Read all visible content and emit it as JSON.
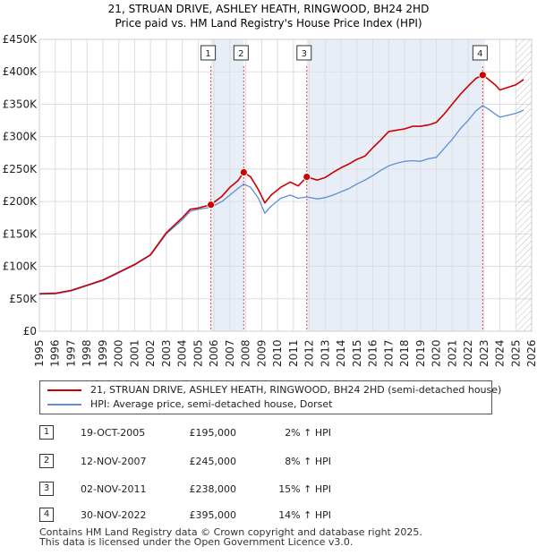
{
  "chart_data": {
    "type": "line",
    "title": "21, STRUAN DRIVE, ASHLEY HEATH, RINGWOOD, BH24 2HD",
    "subtitle": "Price paid vs. HM Land Registry's House Price Index (HPI)",
    "xlim": [
      1995,
      2026
    ],
    "ylim": [
      0,
      450000
    ],
    "x_ticks": [
      "1995",
      "1996",
      "1997",
      "1998",
      "1999",
      "2000",
      "2001",
      "2002",
      "2003",
      "2004",
      "2005",
      "2006",
      "2007",
      "2008",
      "2009",
      "2010",
      "2011",
      "2012",
      "2013",
      "2014",
      "2015",
      "2016",
      "2017",
      "2018",
      "2019",
      "2020",
      "2021",
      "2022",
      "2023",
      "2024",
      "2025",
      "2026"
    ],
    "y_ticks": [
      {
        "value": 0,
        "label": "£0"
      },
      {
        "value": 50000,
        "label": "£50K"
      },
      {
        "value": 100000,
        "label": "£100K"
      },
      {
        "value": 150000,
        "label": "£150K"
      },
      {
        "value": 200000,
        "label": "£200K"
      },
      {
        "value": 250000,
        "label": "£250K"
      },
      {
        "value": 300000,
        "label": "£300K"
      },
      {
        "value": 350000,
        "label": "£350K"
      },
      {
        "value": 400000,
        "label": "£400K"
      },
      {
        "value": 450000,
        "label": "£450K"
      }
    ],
    "grid": true,
    "shaded_regions": [
      [
        2005.8,
        2007.87
      ],
      [
        2011.84,
        2022.92
      ]
    ],
    "forecast_start": 2025.0,
    "series": [
      {
        "name": "21, STRUAN DRIVE, ASHLEY HEATH, RINGWOOD, BH24 2HD (semi-detached house)",
        "color": "#cc0000",
        "points": [
          [
            1995.0,
            58000
          ],
          [
            1996.0,
            58500
          ],
          [
            1997.0,
            63000
          ],
          [
            1998.0,
            71000
          ],
          [
            1999.0,
            79000
          ],
          [
            2000.0,
            91000
          ],
          [
            2001.0,
            103000
          ],
          [
            2002.0,
            118000
          ],
          [
            2003.0,
            152000
          ],
          [
            2004.0,
            175000
          ],
          [
            2004.5,
            188000
          ],
          [
            2005.0,
            190000
          ],
          [
            2005.8,
            195000
          ],
          [
            2006.5,
            208000
          ],
          [
            2007.0,
            222000
          ],
          [
            2007.5,
            232000
          ],
          [
            2007.87,
            245000
          ],
          [
            2008.3,
            238000
          ],
          [
            2008.8,
            218000
          ],
          [
            2009.2,
            198000
          ],
          [
            2009.6,
            210000
          ],
          [
            2010.2,
            222000
          ],
          [
            2010.8,
            230000
          ],
          [
            2011.3,
            224000
          ],
          [
            2011.84,
            238000
          ],
          [
            2012.5,
            233000
          ],
          [
            2013.0,
            237000
          ],
          [
            2013.5,
            245000
          ],
          [
            2014.0,
            252000
          ],
          [
            2014.5,
            258000
          ],
          [
            2015.0,
            265000
          ],
          [
            2015.5,
            270000
          ],
          [
            2016.0,
            283000
          ],
          [
            2016.5,
            295000
          ],
          [
            2017.0,
            308000
          ],
          [
            2017.5,
            310000
          ],
          [
            2018.0,
            312000
          ],
          [
            2018.5,
            316000
          ],
          [
            2019.0,
            316000
          ],
          [
            2019.5,
            318000
          ],
          [
            2020.0,
            322000
          ],
          [
            2020.5,
            335000
          ],
          [
            2021.0,
            350000
          ],
          [
            2021.5,
            365000
          ],
          [
            2022.0,
            378000
          ],
          [
            2022.5,
            390000
          ],
          [
            2022.92,
            395000
          ],
          [
            2023.3,
            388000
          ],
          [
            2023.7,
            380000
          ],
          [
            2024.0,
            372000
          ],
          [
            2024.5,
            376000
          ],
          [
            2025.0,
            380000
          ],
          [
            2025.5,
            388000
          ]
        ]
      },
      {
        "name": "HPI: Average price, semi-detached house, Dorset",
        "color": "#5b8fd6",
        "points": [
          [
            1995.0,
            57000
          ],
          [
            1996.0,
            57500
          ],
          [
            1997.0,
            62000
          ],
          [
            1998.0,
            70000
          ],
          [
            1999.0,
            78000
          ],
          [
            2000.0,
            90000
          ],
          [
            2001.0,
            102000
          ],
          [
            2002.0,
            117000
          ],
          [
            2003.0,
            150000
          ],
          [
            2004.0,
            172000
          ],
          [
            2004.5,
            185000
          ],
          [
            2005.0,
            188000
          ],
          [
            2005.8,
            191000
          ],
          [
            2006.5,
            200000
          ],
          [
            2007.0,
            210000
          ],
          [
            2007.5,
            220000
          ],
          [
            2007.87,
            227000
          ],
          [
            2008.3,
            222000
          ],
          [
            2008.8,
            205000
          ],
          [
            2009.2,
            182000
          ],
          [
            2009.6,
            193000
          ],
          [
            2010.2,
            205000
          ],
          [
            2010.8,
            210000
          ],
          [
            2011.3,
            205000
          ],
          [
            2011.84,
            207000
          ],
          [
            2012.5,
            204000
          ],
          [
            2013.0,
            206000
          ],
          [
            2013.5,
            210000
          ],
          [
            2014.0,
            215000
          ],
          [
            2014.5,
            220000
          ],
          [
            2015.0,
            227000
          ],
          [
            2015.5,
            233000
          ],
          [
            2016.0,
            240000
          ],
          [
            2016.5,
            248000
          ],
          [
            2017.0,
            255000
          ],
          [
            2017.5,
            259000
          ],
          [
            2018.0,
            262000
          ],
          [
            2018.5,
            263000
          ],
          [
            2019.0,
            262000
          ],
          [
            2019.5,
            266000
          ],
          [
            2020.0,
            268000
          ],
          [
            2020.5,
            282000
          ],
          [
            2021.0,
            296000
          ],
          [
            2021.5,
            312000
          ],
          [
            2022.0,
            325000
          ],
          [
            2022.5,
            340000
          ],
          [
            2022.92,
            348000
          ],
          [
            2023.3,
            342000
          ],
          [
            2023.7,
            335000
          ],
          [
            2024.0,
            330000
          ],
          [
            2024.5,
            333000
          ],
          [
            2025.0,
            336000
          ],
          [
            2025.5,
            341000
          ]
        ]
      }
    ],
    "annotations": [
      {
        "label": "1",
        "x": 2005.8,
        "y": 195000
      },
      {
        "label": "2",
        "x": 2007.87,
        "y": 245000
      },
      {
        "label": "3",
        "x": 2011.84,
        "y": 238000
      },
      {
        "label": "4",
        "x": 2022.92,
        "y": 395000
      }
    ]
  },
  "legend": {
    "items": [
      {
        "label": "21, STRUAN DRIVE, ASHLEY HEATH, RINGWOOD, BH24 2HD (semi-detached house)",
        "color": "#cc0000"
      },
      {
        "label": "HPI: Average price, semi-detached house, Dorset",
        "color": "#5b8fd6"
      }
    ]
  },
  "sales": [
    {
      "num": "1",
      "date": "19-OCT-2005",
      "price": "£195,000",
      "hpi": "2% ↑ HPI"
    },
    {
      "num": "2",
      "date": "12-NOV-2007",
      "price": "£245,000",
      "hpi": "8% ↑ HPI"
    },
    {
      "num": "3",
      "date": "02-NOV-2011",
      "price": "£238,000",
      "hpi": "15% ↑ HPI"
    },
    {
      "num": "4",
      "date": "30-NOV-2022",
      "price": "£395,000",
      "hpi": "14% ↑ HPI"
    }
  ],
  "footer": {
    "line1": "Contains HM Land Registry data © Crown copyright and database right 2025.",
    "line2": "This data is licensed under the Open Government Licence v3.0."
  }
}
